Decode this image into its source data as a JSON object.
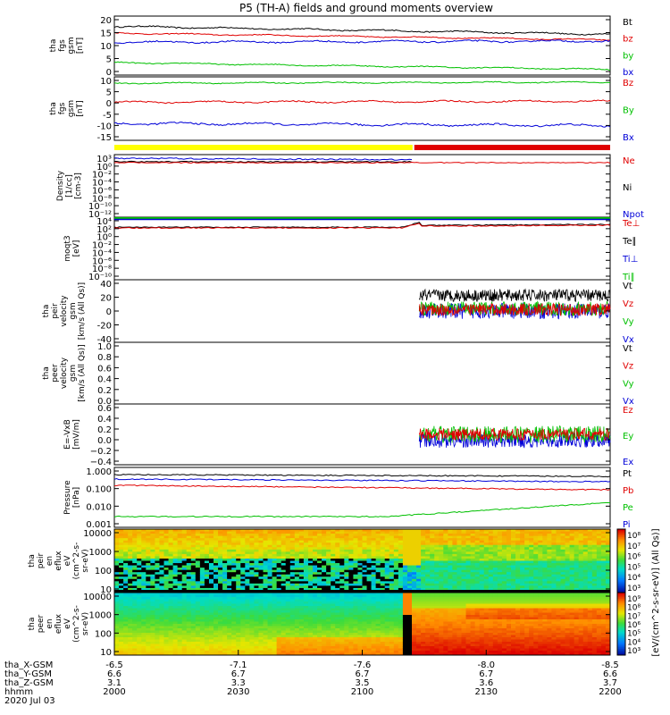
{
  "title": "P5 (TH-A) fields and ground moments overview",
  "colors": {
    "black": "#000000",
    "red": "#e00000",
    "green": "#00c000",
    "blue": "#0000d8",
    "yellow": "#ffff00"
  },
  "chart_data": [
    {
      "id": "fgs_gsm",
      "type": "line",
      "ylabel": [
        "tha",
        "fgs",
        "gsm",
        "[nT]"
      ],
      "ylim": [
        -4,
        22
      ],
      "yticks": [
        20,
        15,
        10,
        5,
        0
      ],
      "series": [
        {
          "name": "Bt",
          "color": "black",
          "base": 17.5,
          "trend": -3.5,
          "noise": 0.5
        },
        {
          "name": "bz",
          "color": "red",
          "base": 14.5,
          "trend": -3,
          "noise": 0.4
        },
        {
          "name": "by",
          "color": "green",
          "base": 1.5,
          "trend": -3,
          "noise": 0.4
        },
        {
          "name": "bx",
          "color": "blue",
          "base": 10.5,
          "trend": 0.5,
          "noise": 0.6
        }
      ]
    },
    {
      "id": "fgs_gsm2",
      "type": "line",
      "ylabel": [
        "tha",
        "fgs",
        "gsm",
        "[nT]"
      ],
      "ylim": [
        -18,
        12
      ],
      "yticks": [
        10,
        5,
        0,
        -5,
        -10,
        -15
      ],
      "series": [
        {
          "name": "Bz",
          "color": "red",
          "base": 0,
          "trend": 0.5,
          "noise": 0.6
        },
        {
          "name": "By",
          "color": "green",
          "base": 9,
          "trend": 0.5,
          "noise": 0.4
        },
        {
          "name": "Bx",
          "color": "blue",
          "base": -10,
          "trend": -1,
          "noise": 0.8
        }
      ]
    },
    {
      "id": "mode_bar",
      "type": "bar",
      "segments": [
        {
          "color": "yellow",
          "to": "2115"
        },
        {
          "color": "red",
          "to": "2200"
        }
      ]
    },
    {
      "id": "density",
      "type": "line",
      "log": true,
      "ylabel": [
        "Density",
        "[1/cc]",
        "[cm-3]"
      ],
      "ylim": [
        1e-12,
        1000.0
      ],
      "yticks": [
        "10³",
        "10⁰",
        "10⁻²",
        "10⁻⁴",
        "10⁻⁶",
        "10⁻⁸",
        "10⁻¹⁰",
        "10⁻¹²"
      ],
      "series": [
        {
          "name": "Ne",
          "color": "red"
        },
        {
          "name": "Ni",
          "color": "black"
        },
        {
          "name": "Npot",
          "color": "blue"
        }
      ]
    },
    {
      "id": "moqt3",
      "type": "line",
      "log": true,
      "ylabel": [
        "moqt3",
        "[eV]"
      ],
      "ylim": [
        1e-10,
        10000.0
      ],
      "yticks": [
        "10⁴",
        "10²",
        "10⁰",
        "10⁻²",
        "10⁻⁴",
        "10⁻⁶",
        "10⁻⁸",
        "10⁻¹⁰"
      ],
      "series": [
        {
          "name": "Te⊥",
          "color": "red"
        },
        {
          "name": "Te∥",
          "color": "black"
        },
        {
          "name": "Ti⊥",
          "color": "blue"
        },
        {
          "name": "Ti∥",
          "color": "green"
        }
      ]
    },
    {
      "id": "peir_velocity",
      "type": "line",
      "ylabel": [
        "tha",
        "peir",
        "velocity",
        "gsm",
        "[km/s (All Qs)]"
      ],
      "ylim": [
        -40,
        40
      ],
      "yticks": [
        40,
        20,
        0,
        -20,
        -40
      ],
      "series": [
        {
          "name": "Vt",
          "color": "black"
        },
        {
          "name": "Vz",
          "color": "red"
        },
        {
          "name": "Vy",
          "color": "green"
        },
        {
          "name": "Vx",
          "color": "blue"
        }
      ]
    },
    {
      "id": "peer_velocity",
      "type": "line",
      "ylabel": [
        "tha",
        "peer",
        "velocity",
        "gsm",
        "[km/s (All Qs)]"
      ],
      "ylim": [
        0,
        1
      ],
      "yticks": [
        "1.0",
        "0.8",
        "0.6",
        "0.4",
        "0.2",
        "0.0"
      ],
      "series": [
        {
          "name": "Vt",
          "color": "black"
        },
        {
          "name": "Vz",
          "color": "red"
        },
        {
          "name": "Vy",
          "color": "green"
        },
        {
          "name": "Vx",
          "color": "blue"
        }
      ]
    },
    {
      "id": "efield",
      "type": "line",
      "ylabel": [
        "E=-VxB",
        "[mV/m]"
      ],
      "ylim": [
        -0.4,
        0.6
      ],
      "yticks": [
        "0.6",
        "0.4",
        "0.2",
        "0.0",
        "−0.2",
        "−0.4"
      ],
      "series": [
        {
          "name": "Ez",
          "color": "red"
        },
        {
          "name": "Ey",
          "color": "green"
        },
        {
          "name": "Ex",
          "color": "blue"
        }
      ]
    },
    {
      "id": "pressure",
      "type": "line",
      "log": true,
      "ylabel": [
        "Pressure",
        "[nPa]"
      ],
      "ylim": [
        0.0008,
        1.3
      ],
      "yticks": [
        "1.000",
        "0.100",
        "0.010",
        "0.001"
      ],
      "series": [
        {
          "name": "Pt",
          "color": "black"
        },
        {
          "name": "Pb",
          "color": "red"
        },
        {
          "name": "Pe",
          "color": "green"
        },
        {
          "name": "Pi",
          "color": "blue"
        }
      ]
    },
    {
      "id": "peir_spec",
      "type": "heatmap",
      "ylabel": [
        "tha",
        "peir",
        "en",
        "eflux",
        "eV",
        "(cm^2-s-",
        "sr-eV)"
      ],
      "yticks": [
        "10000",
        "1000",
        "100",
        "10"
      ]
    },
    {
      "id": "peer_spec",
      "type": "heatmap",
      "ylabel": [
        "tha",
        "peer",
        "en",
        "eflux",
        "eV",
        "(cm^2-s-",
        "sr-eV)"
      ],
      "yticks": [
        "10000",
        "1000",
        "100",
        "10"
      ]
    }
  ],
  "colorbar": {
    "top_ticks": [
      "10⁸",
      "10⁷",
      "10⁶",
      "10⁵",
      "10⁴",
      "10³"
    ],
    "bottom_ticks": [
      "10⁹",
      "10⁸",
      "10⁷",
      "10⁶",
      "10⁵",
      "10⁴",
      "10³"
    ],
    "label": "[eV/(cm^2-s-sr-eV)] (All Qs)]"
  },
  "x_axis": {
    "row_labels": [
      "tha_X-GSM",
      "tha_Y-GSM",
      "tha_Z-GSM",
      "hhmm",
      "2020 Jul 03"
    ],
    "columns": [
      {
        "x": "-6.5",
        "y": "6.6",
        "z": "3.1",
        "time": "2000"
      },
      {
        "x": "-7.1",
        "y": "6.7",
        "z": "3.3",
        "time": "2030"
      },
      {
        "x": "-7.6",
        "y": "6.7",
        "z": "3.5",
        "time": "2100"
      },
      {
        "x": "-8.0",
        "y": "6.7",
        "z": "3.6",
        "time": "2130"
      },
      {
        "x": "-8.5",
        "y": "6.6",
        "z": "3.7",
        "time": "2200"
      }
    ]
  }
}
